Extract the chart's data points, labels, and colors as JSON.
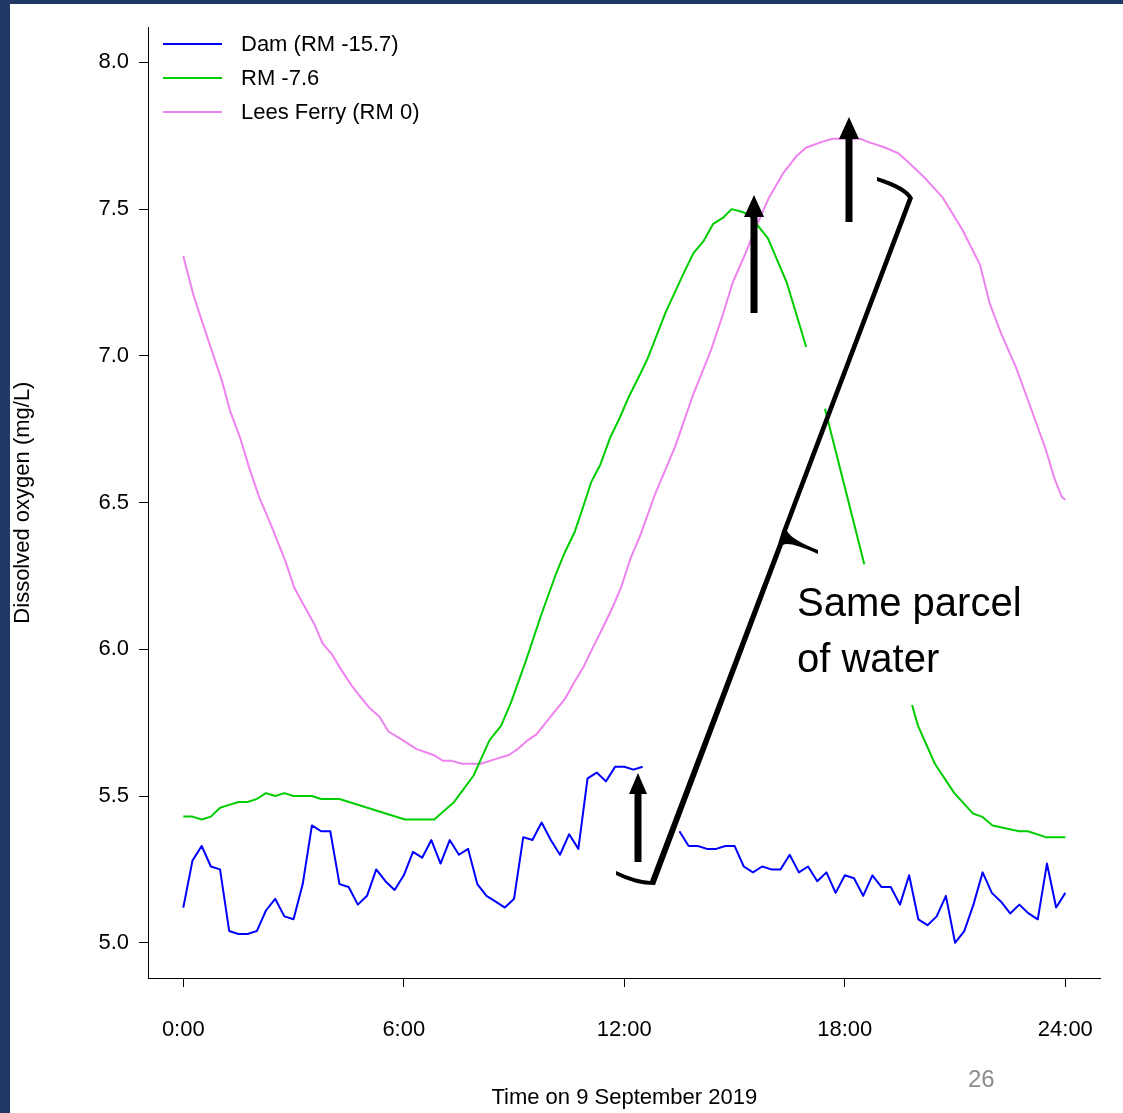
{
  "chart_data": {
    "type": "line",
    "xlabel": "Time on 9 September 2019",
    "ylabel": "Dissolved oxygen (mg/L)",
    "xlim": [
      -0.96,
      24.96
    ],
    "ylim": [
      4.88,
      8.12
    ],
    "xticks": [
      {
        "value": 0,
        "label": "0:00"
      },
      {
        "value": 6,
        "label": "6:00"
      },
      {
        "value": 12,
        "label": "12:00"
      },
      {
        "value": 18,
        "label": "18:00"
      },
      {
        "value": 24,
        "label": "24:00"
      }
    ],
    "yticks": [
      {
        "value": 5,
        "label": "5.0"
      },
      {
        "value": 5.5,
        "label": "5.5"
      },
      {
        "value": 6,
        "label": "6.0"
      },
      {
        "value": 6.5,
        "label": "6.5"
      },
      {
        "value": 7,
        "label": "7.0"
      },
      {
        "value": 7.5,
        "label": "7.5"
      },
      {
        "value": 8,
        "label": "8.0"
      }
    ],
    "x": [
      0,
      0.25,
      0.5,
      0.75,
      1,
      1.25,
      1.5,
      1.75,
      2,
      2.25,
      2.5,
      2.75,
      3,
      3.25,
      3.5,
      3.75,
      4,
      4.25,
      4.5,
      4.75,
      5,
      5.25,
      5.5,
      5.75,
      6,
      6.25,
      6.5,
      6.75,
      7,
      7.25,
      7.5,
      7.75,
      8,
      8.25,
      8.5,
      8.75,
      9,
      9.25,
      9.5,
      9.75,
      10,
      10.25,
      10.5,
      10.75,
      11,
      11.25,
      11.5,
      11.75,
      12,
      12.25,
      12.5,
      12.75,
      13,
      13.25,
      13.5,
      13.75,
      14,
      14.25,
      14.5,
      14.75,
      15,
      15.25,
      15.5,
      15.75,
      16,
      16.25,
      16.5,
      16.75,
      17,
      17.25,
      17.5,
      17.75,
      18,
      18.25,
      18.5,
      18.75,
      19,
      19.25,
      19.5,
      19.75,
      20,
      20.25,
      20.5,
      20.75,
      21,
      21.25,
      21.5,
      21.75,
      22,
      22.25,
      22.5,
      22.75,
      23,
      23.25,
      23.5,
      23.75,
      24
    ],
    "series": [
      {
        "name": "Dam (RM -15.7)",
        "color": "#0000ff",
        "values": [
          5.12,
          5.28,
          5.33,
          5.26,
          5.25,
          5.04,
          5.03,
          5.03,
          5.04,
          5.11,
          5.15,
          5.09,
          5.08,
          5.2,
          5.4,
          5.38,
          5.38,
          5.2,
          5.19,
          5.13,
          5.16,
          5.25,
          5.21,
          5.18,
          5.23,
          5.31,
          5.29,
          5.35,
          5.27,
          5.35,
          5.3,
          5.32,
          5.2,
          5.16,
          5.14,
          5.12,
          5.15,
          5.36,
          5.35,
          5.41,
          5.35,
          5.3,
          5.37,
          5.32,
          5.56,
          5.58,
          5.55,
          5.6,
          5.6,
          5.59,
          5.6,
          null,
          null,
          null,
          5.38,
          5.33,
          5.33,
          5.32,
          5.32,
          5.33,
          5.33,
          5.26,
          5.24,
          5.26,
          5.25,
          5.25,
          5.3,
          5.24,
          5.26,
          5.21,
          5.24,
          5.17,
          5.23,
          5.22,
          5.16,
          5.23,
          5.19,
          5.19,
          5.13,
          5.23,
          5.08,
          5.06,
          5.09,
          5.16,
          5.0,
          5.04,
          5.13,
          5.24,
          5.17,
          5.14,
          5.1,
          5.13,
          5.1,
          5.08,
          5.27,
          5.12,
          5.17
        ]
      },
      {
        "name": "RM -7.6",
        "color": "#00cd00",
        "x": [
          0,
          0.25,
          0.5,
          0.75,
          1,
          1.25,
          1.5,
          1.75,
          2,
          2.25,
          2.5,
          2.75,
          3,
          3.5,
          3.75,
          4.25,
          6.03,
          6.83,
          7.37,
          7.9,
          8.33,
          8.65,
          8.92,
          9.32,
          9.72,
          10.12,
          10.38,
          10.65,
          10.84,
          11.1,
          11.35,
          11.61,
          11.88,
          12.12,
          12.44,
          12.63,
          13.13,
          13.61,
          13.88,
          14.15,
          14.42,
          14.68,
          14.92,
          15.22,
          15.4,
          15.91,
          16.42,
          16.95,
          17.2,
          17.46,
          18.53,
          19.1,
          19.83,
          19.99,
          20.45,
          20.98,
          21.49,
          21.73,
          22.02,
          22.74,
          22.98,
          23.47,
          24
        ],
        "values": [
          5.43,
          5.43,
          5.42,
          5.43,
          5.46,
          5.47,
          5.48,
          5.48,
          5.49,
          5.51,
          5.5,
          5.51,
          5.5,
          5.5,
          5.49,
          5.49,
          5.42,
          5.42,
          5.48,
          5.57,
          5.69,
          5.74,
          5.82,
          5.96,
          6.11,
          6.25,
          6.33,
          6.4,
          6.47,
          6.57,
          6.63,
          6.72,
          6.79,
          6.86,
          6.94,
          6.99,
          7.15,
          7.28,
          7.35,
          7.39,
          7.45,
          7.47,
          7.5,
          7.49,
          7.48,
          7.4,
          7.25,
          7.03,
          null,
          6.82,
          6.29,
          null,
          5.81,
          5.74,
          5.61,
          5.51,
          5.44,
          5.43,
          5.4,
          5.38,
          5.38,
          5.36,
          5.36
        ]
      },
      {
        "name": "Lees Ferry (RM 0)",
        "color": "#ee82ee",
        "x": [
          0,
          0.27,
          0.53,
          0.77,
          1.04,
          1.28,
          1.55,
          1.79,
          2.06,
          2.4,
          2.78,
          3.02,
          3.28,
          3.55,
          3.79,
          4.06,
          4.3,
          4.56,
          4.81,
          5.07,
          5.34,
          5.58,
          5.85,
          6.35,
          6.81,
          7.07,
          7.31,
          7.58,
          8.09,
          8.6,
          8.86,
          9.1,
          9.37,
          9.61,
          10.12,
          10.38,
          10.65,
          10.89,
          11.16,
          11.4,
          11.67,
          11.91,
          12.17,
          12.44,
          12.84,
          13.38,
          13.88,
          14.36,
          14.68,
          14.95,
          15.3,
          15.62,
          15.94,
          16.31,
          16.68,
          16.95,
          17.4,
          17.67,
          18.42,
          18.61,
          19.09,
          19.46,
          19.73,
          20.15,
          20.66,
          21.2,
          21.68,
          21.94,
          22.24,
          22.66,
          23.04,
          23.47,
          23.71,
          23.9,
          24
        ],
        "values": [
          7.34,
          7.21,
          7.11,
          7.02,
          6.92,
          6.81,
          6.72,
          6.62,
          6.52,
          6.42,
          6.3,
          6.21,
          6.15,
          6.09,
          6.02,
          5.98,
          5.93,
          5.88,
          5.84,
          5.8,
          5.77,
          5.72,
          5.7,
          5.66,
          5.64,
          5.62,
          5.62,
          5.61,
          5.61,
          5.63,
          5.64,
          5.66,
          5.69,
          5.71,
          5.79,
          5.83,
          5.89,
          5.94,
          6.01,
          6.07,
          6.14,
          6.21,
          6.31,
          6.39,
          6.53,
          6.69,
          6.87,
          7.02,
          7.14,
          7.25,
          7.35,
          7.45,
          7.54,
          7.62,
          7.68,
          7.71,
          7.73,
          7.74,
          7.74,
          7.73,
          7.71,
          7.69,
          7.66,
          7.61,
          7.54,
          7.43,
          7.31,
          7.18,
          7.08,
          6.96,
          6.83,
          6.68,
          6.58,
          6.52,
          6.51
        ]
      }
    ],
    "legend": "top left",
    "grid": false,
    "marker": "none",
    "line_style": "solid",
    "annotations": [
      "Same parcel of water",
      "26"
    ]
  }
}
